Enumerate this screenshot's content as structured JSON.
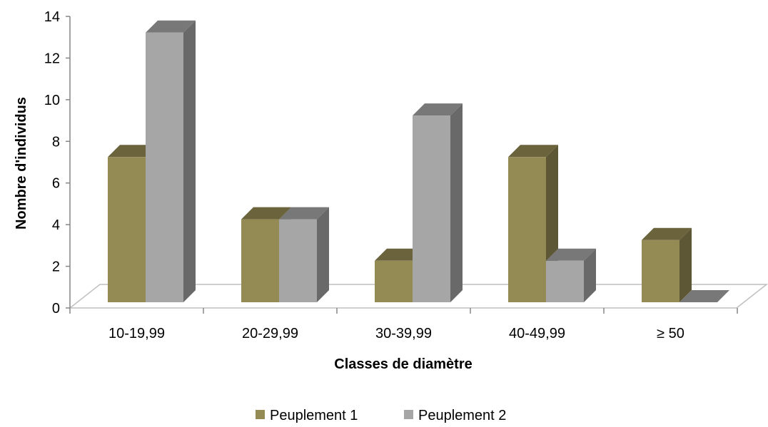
{
  "chart_data": {
    "type": "bar",
    "categories": [
      "10-19,99",
      "20-29,99",
      "30-39,99",
      "40-49,99",
      "≥ 50"
    ],
    "series": [
      {
        "name": "Peuplement 1",
        "values": [
          7,
          4,
          2,
          7,
          3
        ],
        "color": "#948A54"
      },
      {
        "name": "Peuplement 2",
        "values": [
          13,
          4,
          9,
          2,
          0
        ],
        "color": "#A6A6A6"
      }
    ],
    "xlabel": "Classes de diamètre",
    "ylabel": "Nombre d'individus",
    "ylim": [
      0,
      14
    ],
    "yticks": [
      "0",
      "2",
      "4",
      "6",
      "8",
      "10",
      "12",
      "14"
    ],
    "grid": false,
    "legend": "bottom",
    "style": "3d-clustered-column"
  }
}
